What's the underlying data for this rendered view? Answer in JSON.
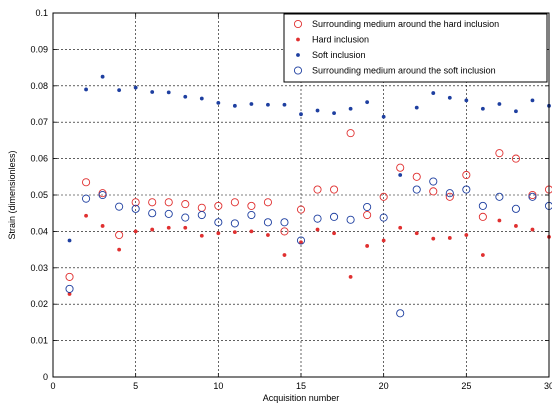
{
  "chart_data": {
    "type": "scatter",
    "title": "",
    "xlabel": "Acquisition number",
    "ylabel": "Strain (dimensionless)",
    "xlim": [
      0,
      30
    ],
    "ylim": [
      0,
      0.1
    ],
    "xticks": [
      0,
      5,
      10,
      15,
      20,
      25,
      30
    ],
    "yticks": [
      0,
      0.01,
      0.02,
      0.03,
      0.04,
      0.05,
      0.06,
      0.07,
      0.08,
      0.09,
      0.1
    ],
    "xtick_labels": [
      "0",
      "5",
      "10",
      "15",
      "20",
      "25",
      "30"
    ],
    "ytick_labels": [
      "0",
      "0.01",
      "0.02",
      "0.03",
      "0.04",
      "0.05",
      "0.06",
      "0.07",
      "0.08",
      "0.09",
      "0.1"
    ],
    "grid": "dashed",
    "legend_position": "top-right",
    "series": [
      {
        "name": "Surrounding medium around the hard inclusion",
        "marker": "open-circle",
        "color": "#e03030",
        "x": [
          1,
          2,
          3,
          4,
          5,
          6,
          7,
          8,
          9,
          10,
          11,
          12,
          13,
          14,
          15,
          16,
          17,
          18,
          19,
          20,
          21,
          22,
          23,
          24,
          25,
          26,
          27,
          28,
          29,
          30
        ],
        "y": [
          0.0275,
          0.0535,
          0.0505,
          0.039,
          0.048,
          0.048,
          0.048,
          0.0475,
          0.0465,
          0.047,
          0.048,
          0.047,
          0.048,
          0.04,
          0.046,
          0.0515,
          0.0515,
          0.067,
          0.0445,
          0.0495,
          0.0575,
          0.055,
          0.051,
          0.0495,
          0.0555,
          0.044,
          0.0615,
          0.06,
          0.05,
          0.0515
        ]
      },
      {
        "name": "Hard inclusion",
        "marker": "dot",
        "color": "#e03030",
        "x": [
          1,
          2,
          3,
          4,
          5,
          6,
          7,
          8,
          9,
          10,
          11,
          12,
          13,
          14,
          15,
          16,
          17,
          18,
          19,
          20,
          21,
          22,
          23,
          24,
          25,
          26,
          27,
          28,
          29,
          30
        ],
        "y": [
          0.0228,
          0.0443,
          0.0415,
          0.035,
          0.04,
          0.0405,
          0.041,
          0.041,
          0.0388,
          0.0395,
          0.0398,
          0.04,
          0.039,
          0.0335,
          0.037,
          0.0405,
          0.0395,
          0.0275,
          0.036,
          0.0375,
          0.041,
          0.0395,
          0.038,
          0.0382,
          0.039,
          0.0335,
          0.043,
          0.0415,
          0.0405,
          0.0385
        ]
      },
      {
        "name": "Soft inclusion",
        "marker": "dot",
        "color": "#1e3fa0",
        "x": [
          1,
          2,
          3,
          4,
          5,
          6,
          7,
          8,
          9,
          10,
          11,
          12,
          13,
          14,
          15,
          16,
          17,
          18,
          19,
          20,
          21,
          22,
          23,
          24,
          25,
          26,
          27,
          28,
          29,
          30
        ],
        "y": [
          0.0375,
          0.079,
          0.0825,
          0.0788,
          0.0795,
          0.0783,
          0.0782,
          0.077,
          0.0765,
          0.0753,
          0.0745,
          0.075,
          0.0748,
          0.0748,
          0.0722,
          0.0732,
          0.0725,
          0.0737,
          0.0755,
          0.0715,
          0.0555,
          0.074,
          0.078,
          0.0767,
          0.076,
          0.0737,
          0.075,
          0.073,
          0.076,
          0.0745
        ]
      },
      {
        "name": "Surrounding medium around the soft inclusion",
        "marker": "open-circle",
        "color": "#1e3fa0",
        "x": [
          1,
          2,
          3,
          4,
          5,
          6,
          7,
          8,
          9,
          10,
          11,
          12,
          13,
          14,
          15,
          16,
          17,
          18,
          19,
          20,
          21,
          22,
          23,
          24,
          25,
          26,
          27,
          28,
          29,
          30
        ],
        "y": [
          0.0242,
          0.049,
          0.05,
          0.0468,
          0.0462,
          0.045,
          0.0448,
          0.0438,
          0.0445,
          0.0425,
          0.0422,
          0.0445,
          0.0425,
          0.0425,
          0.0375,
          0.0435,
          0.044,
          0.0432,
          0.0467,
          0.0438,
          0.0175,
          0.0515,
          0.0537,
          0.0505,
          0.0515,
          0.047,
          0.0495,
          0.0462,
          0.0495,
          0.047
        ]
      }
    ]
  }
}
